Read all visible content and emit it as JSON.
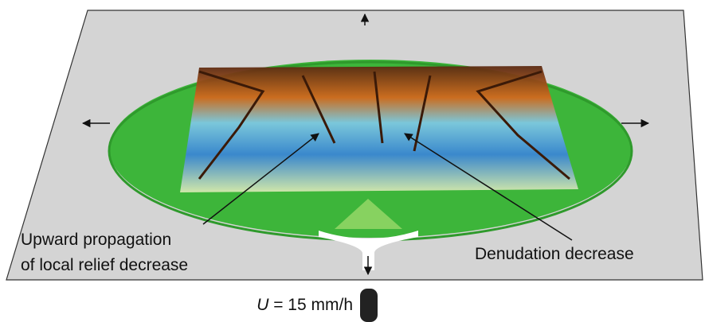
{
  "annotations": [
    {
      "lines": [
        "Upward propagation",
        "of local relief decrease"
      ]
    },
    {
      "lines": [
        "Denudation decrease"
      ]
    }
  ],
  "outlet": {
    "symbol": "U",
    "text": "= 15 mm/h"
  }
}
